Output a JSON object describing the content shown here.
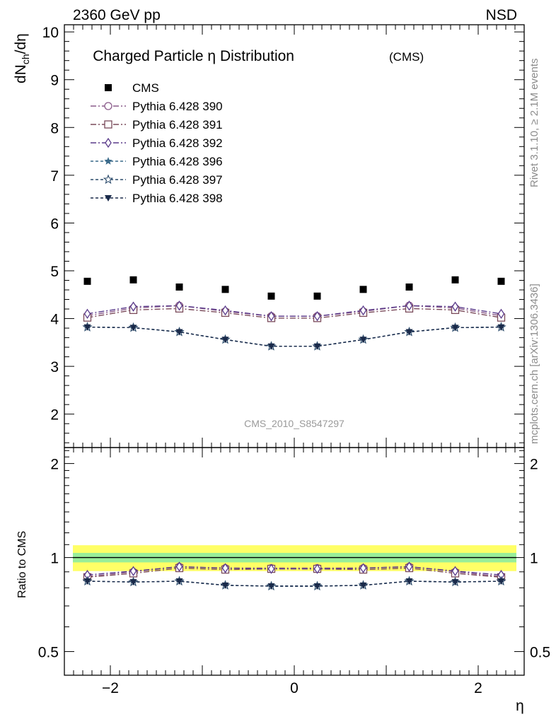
{
  "header": {
    "left": "2360 GeV pp",
    "right": "NSD"
  },
  "side_labels": {
    "rivet": "Rivet 3.1.10, ≥ 2.1M events",
    "mcplots": "mcplots.cern.ch [arXiv:1306.3436]"
  },
  "chart_data": [
    {
      "type": "scatter",
      "panel": "main",
      "title": "Charged Particle η Distribution",
      "title_suffix": "(CMS)",
      "ylabel": "dN_ch/dη",
      "ylabel_main": "dN",
      "ylabel_sub": "ch",
      "ylabel_tail": "/dη",
      "xlim": [
        -2.5,
        2.5
      ],
      "ylim": [
        1.3,
        10.15
      ],
      "yticks": [
        "2",
        "3",
        "4",
        "5",
        "6",
        "7",
        "8",
        "9",
        "10"
      ],
      "analysis_label": "CMS_2010_S8547297",
      "legend_position": "top-left",
      "x": [
        -2.25,
        -1.75,
        -1.25,
        -0.75,
        -0.25,
        0.25,
        0.75,
        1.25,
        1.75,
        2.25
      ],
      "series": [
        {
          "name": "CMS",
          "color": "#000000",
          "marker": "square",
          "line": "none",
          "values": [
            4.78,
            4.81,
            4.66,
            4.61,
            4.47,
            4.47,
            4.61,
            4.66,
            4.81,
            4.78
          ]
        },
        {
          "name": "Pythia 6.428 390",
          "color": "#8a5a8a",
          "marker": "circle-open",
          "line": "dashdot",
          "values": [
            4.06,
            4.22,
            4.27,
            4.15,
            4.05,
            4.05,
            4.15,
            4.27,
            4.22,
            4.06
          ]
        },
        {
          "name": "Pythia 6.428 391",
          "color": "#7a4a5a",
          "marker": "square-open",
          "line": "dashdot",
          "values": [
            4.02,
            4.18,
            4.21,
            4.12,
            4.01,
            4.01,
            4.12,
            4.21,
            4.18,
            4.02
          ]
        },
        {
          "name": "Pythia 6.428 392",
          "color": "#5a3a8a",
          "marker": "diamond-open",
          "line": "dashdot",
          "values": [
            4.1,
            4.25,
            4.27,
            4.17,
            4.05,
            4.05,
            4.17,
            4.27,
            4.25,
            4.1
          ]
        },
        {
          "name": "Pythia 6.428 396",
          "color": "#3a6a8a",
          "marker": "star",
          "line": "dashed",
          "values": [
            3.82,
            3.81,
            3.72,
            3.56,
            3.42,
            3.42,
            3.56,
            3.72,
            3.81,
            3.82
          ]
        },
        {
          "name": "Pythia 6.428 397",
          "color": "#2a4a6a",
          "marker": "star-open",
          "line": "dashed",
          "values": [
            3.82,
            3.81,
            3.72,
            3.56,
            3.42,
            3.42,
            3.56,
            3.72,
            3.81,
            3.82
          ]
        },
        {
          "name": "Pythia 6.428 398",
          "color": "#1a2a4a",
          "marker": "triangle-down",
          "line": "dashed",
          "values": [
            3.82,
            3.81,
            3.72,
            3.56,
            3.42,
            3.42,
            3.56,
            3.72,
            3.81,
            3.82
          ]
        }
      ]
    },
    {
      "type": "line",
      "panel": "ratio",
      "ylabel": "Ratio to CMS",
      "xlabel": "η",
      "xlim": [
        -2.5,
        2.5
      ],
      "ylim": [
        0.42,
        2.25
      ],
      "yscale": "log",
      "yticks": [
        "0.5",
        "1",
        "2"
      ],
      "xticks": [
        "−2",
        "0",
        "2"
      ],
      "bands": [
        {
          "kind": "total uncertainty",
          "color": "#ffff66",
          "low": 0.905,
          "high": 1.095
        },
        {
          "kind": "statistical uncertainty",
          "color": "#99ee99",
          "low": 0.965,
          "high": 1.035
        }
      ],
      "x": [
        -2.25,
        -1.75,
        -1.25,
        -0.75,
        -0.25,
        0.25,
        0.75,
        1.25,
        1.75,
        2.25
      ],
      "series": [
        {
          "name": "Pythia 6.428 390",
          "color": "#8a5a8a",
          "marker": "circle-open",
          "line": "dashdot",
          "values": [
            0.87,
            0.9,
            0.935,
            0.925,
            0.925,
            0.925,
            0.925,
            0.935,
            0.9,
            0.87
          ]
        },
        {
          "name": "Pythia 6.428 391",
          "color": "#7a4a5a",
          "marker": "square-open",
          "line": "dashdot",
          "values": [
            0.865,
            0.89,
            0.925,
            0.915,
            0.92,
            0.92,
            0.915,
            0.925,
            0.89,
            0.865
          ]
        },
        {
          "name": "Pythia 6.428 392",
          "color": "#5a3a8a",
          "marker": "diamond-open",
          "line": "dashdot",
          "values": [
            0.88,
            0.905,
            0.935,
            0.925,
            0.92,
            0.92,
            0.925,
            0.935,
            0.905,
            0.88
          ]
        },
        {
          "name": "Pythia 6.428 396",
          "color": "#3a6a8a",
          "marker": "star",
          "line": "dashed",
          "values": [
            0.84,
            0.835,
            0.84,
            0.815,
            0.81,
            0.81,
            0.815,
            0.84,
            0.835,
            0.84
          ]
        },
        {
          "name": "Pythia 6.428 397",
          "color": "#2a4a6a",
          "marker": "star-open",
          "line": "dashed",
          "values": [
            0.84,
            0.835,
            0.84,
            0.815,
            0.81,
            0.81,
            0.815,
            0.84,
            0.835,
            0.84
          ]
        },
        {
          "name": "Pythia 6.428 398",
          "color": "#1a2a4a",
          "marker": "triangle-down",
          "line": "dashed",
          "values": [
            0.84,
            0.835,
            0.84,
            0.815,
            0.81,
            0.81,
            0.815,
            0.84,
            0.835,
            0.84
          ]
        }
      ]
    }
  ]
}
